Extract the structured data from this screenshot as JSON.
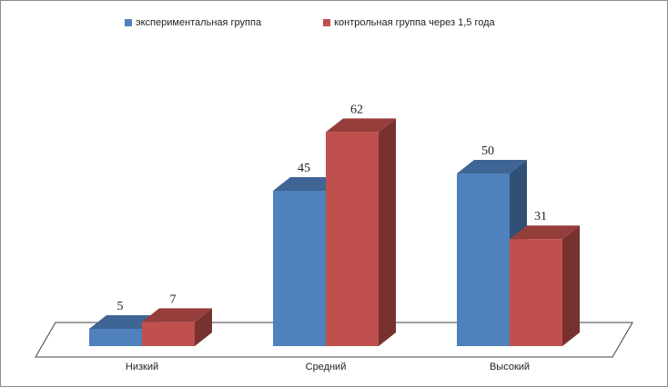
{
  "chart_data": {
    "type": "bar",
    "title": "",
    "xlabel": "",
    "ylabel": "",
    "categories": [
      "Низкий",
      "Средний",
      "Высокий"
    ],
    "series": [
      {
        "name": "экспериментальная группа",
        "values": [
          5,
          45,
          50
        ],
        "color": "#4f81bd"
      },
      {
        "name": "контрольная группа через 1,5 года",
        "values": [
          7,
          62,
          31
        ],
        "color": "#c0504d"
      }
    ],
    "ylim": [
      0,
      70
    ],
    "grid": false,
    "legend": "top",
    "style": "3d-clustered-column"
  }
}
